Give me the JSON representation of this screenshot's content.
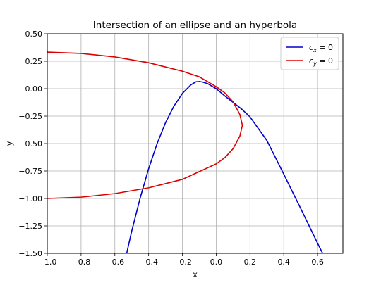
{
  "chart_data": {
    "type": "line",
    "title": "Intersection of an ellipse and an hyperbola",
    "xlabel": "x",
    "ylabel": "y",
    "xlim": [
      -1.0,
      0.75
    ],
    "ylim": [
      -1.5,
      0.5
    ],
    "x_ticks": [
      -1.0,
      -0.8,
      -0.6,
      -0.4,
      -0.2,
      0.0,
      0.2,
      0.4,
      0.6
    ],
    "y_ticks": [
      0.5,
      0.25,
      0.0,
      -0.25,
      -0.5,
      -0.75,
      -1.0,
      -1.25,
      -1.5
    ],
    "x_tick_labels": [
      "−1.0",
      "−0.8",
      "−0.6",
      "−0.4",
      "−0.2",
      "0.0",
      "0.2",
      "0.4",
      "0.6"
    ],
    "y_tick_labels": [
      "0.50",
      "0.25",
      "0.00",
      "−0.25",
      "−0.50",
      "−0.75",
      "−1.00",
      "−1.25",
      "−1.50"
    ],
    "grid": true,
    "legend_position": "top-right",
    "series": [
      {
        "name": "c_x = 0",
        "legend_main": "c",
        "legend_sub": "x",
        "legend_rest": " = 0",
        "color": "#0000cc",
        "points": [
          [
            -0.53,
            -1.5
          ],
          [
            -0.5,
            -1.297
          ],
          [
            -0.45,
            -0.995
          ],
          [
            -0.4,
            -0.729
          ],
          [
            -0.35,
            -0.501
          ],
          [
            -0.3,
            -0.31
          ],
          [
            -0.25,
            -0.158
          ],
          [
            -0.2,
            -0.043
          ],
          [
            -0.15,
            0.035
          ],
          [
            -0.12,
            0.062
          ],
          [
            -0.1,
            0.065
          ],
          [
            -0.08,
            0.06
          ],
          [
            -0.05,
            0.045
          ],
          [
            0.0,
            0.0
          ],
          [
            0.05,
            -0.065
          ],
          [
            0.1,
            -0.125
          ],
          [
            0.15,
            -0.185
          ],
          [
            0.2,
            -0.257
          ],
          [
            0.3,
            -0.472
          ],
          [
            0.4,
            -0.779
          ],
          [
            0.5,
            -1.091
          ],
          [
            0.6,
            -1.408
          ],
          [
            0.63,
            -1.5
          ]
        ]
      },
      {
        "name": "c_y = 0",
        "legend_main": "c",
        "legend_sub": "y",
        "legend_rest": " = 0",
        "color": "#dd0000",
        "points": [
          [
            -1.0,
            0.333
          ],
          [
            -0.8,
            0.321
          ],
          [
            -0.6,
            0.289
          ],
          [
            -0.4,
            0.236
          ],
          [
            -0.2,
            0.159
          ],
          [
            -0.1,
            0.108
          ],
          [
            0.0,
            0.018
          ],
          [
            0.05,
            -0.037
          ],
          [
            0.1,
            -0.12
          ],
          [
            0.14,
            -0.235
          ],
          [
            0.155,
            -0.333
          ],
          [
            0.14,
            -0.432
          ],
          [
            0.1,
            -0.547
          ],
          [
            0.05,
            -0.63
          ],
          [
            0.0,
            -0.685
          ],
          [
            -0.2,
            -0.826
          ],
          [
            -0.4,
            -0.903
          ],
          [
            -0.6,
            -0.956
          ],
          [
            -0.8,
            -0.988
          ],
          [
            -1.0,
            -1.0
          ]
        ]
      }
    ]
  }
}
